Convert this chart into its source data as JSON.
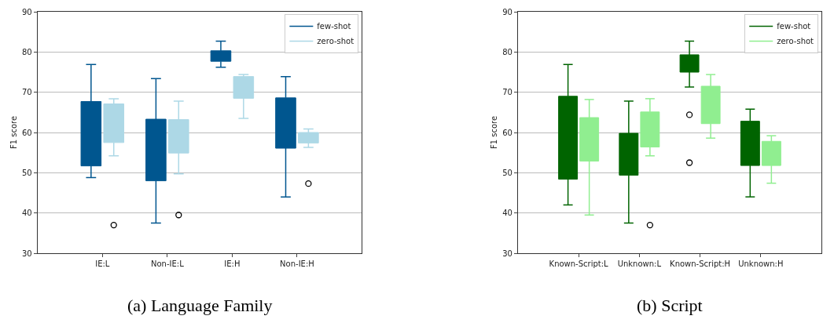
{
  "chart_data": [
    {
      "type": "box",
      "title": "(a) Language Family",
      "ylabel": "F1 score",
      "categories": [
        "IE:L",
        "Non-IE:L",
        "IE:H",
        "Non-IE:H"
      ],
      "ylim": [
        30,
        90
      ],
      "yticks": [
        30,
        40,
        50,
        60,
        70,
        80,
        90
      ],
      "grid": "y",
      "legend": "top right",
      "series": [
        {
          "name": "few-shot",
          "color": "#00568f",
          "boxes": [
            {
              "low": 48.8,
              "q1": 51.7,
              "q3": 67.7,
              "high": 76.9
            },
            {
              "low": 37.5,
              "q1": 48.0,
              "q3": 63.3,
              "high": 73.4
            },
            {
              "low": 76.2,
              "q1": 77.7,
              "q3": 80.3,
              "high": 82.7
            },
            {
              "low": 44.0,
              "q1": 56.1,
              "q3": 68.6,
              "high": 73.9
            }
          ]
        },
        {
          "name": "zero-shot",
          "color": "#add8e6",
          "boxes": [
            {
              "low": 54.2,
              "q1": 57.5,
              "q3": 67.1,
              "high": 68.4,
              "outliers": [
                37.0
              ]
            },
            {
              "low": 49.7,
              "q1": 54.9,
              "q3": 63.2,
              "high": 67.8,
              "outliers": [
                39.5
              ]
            },
            {
              "low": 63.5,
              "q1": 68.5,
              "q3": 73.9,
              "high": 74.4
            },
            {
              "low": 56.3,
              "q1": 57.4,
              "q3": 60.0,
              "high": 60.9,
              "outliers": [
                47.3
              ]
            }
          ]
        }
      ]
    },
    {
      "type": "box",
      "title": "(b) Script",
      "ylabel": "F1 score",
      "categories": [
        "Known-Script:L",
        "Unknown:L",
        "Known-Script:H",
        "Unknown:H"
      ],
      "ylim": [
        30,
        90
      ],
      "yticks": [
        30,
        40,
        50,
        60,
        70,
        80,
        90
      ],
      "grid": "y",
      "legend": "top right",
      "series": [
        {
          "name": "few-shot",
          "color": "#006400",
          "boxes": [
            {
              "low": 42.0,
              "q1": 48.4,
              "q3": 69.0,
              "high": 76.9
            },
            {
              "low": 37.5,
              "q1": 49.4,
              "q3": 59.8,
              "high": 67.8
            },
            {
              "low": 71.3,
              "q1": 75.0,
              "q3": 79.3,
              "high": 82.7,
              "outliers": [
                64.4,
                52.5
              ]
            },
            {
              "low": 44.0,
              "q1": 51.8,
              "q3": 62.8,
              "high": 65.8
            }
          ]
        },
        {
          "name": "zero-shot",
          "color": "#90ee90",
          "boxes": [
            {
              "low": 39.5,
              "q1": 52.9,
              "q3": 63.7,
              "high": 68.2
            },
            {
              "low": 54.2,
              "q1": 56.4,
              "q3": 65.1,
              "high": 68.4,
              "outliers": [
                37.0
              ]
            },
            {
              "low": 58.6,
              "q1": 62.2,
              "q3": 71.5,
              "high": 74.4
            },
            {
              "low": 47.4,
              "q1": 51.8,
              "q3": 57.8,
              "high": 59.2
            }
          ]
        }
      ]
    }
  ]
}
